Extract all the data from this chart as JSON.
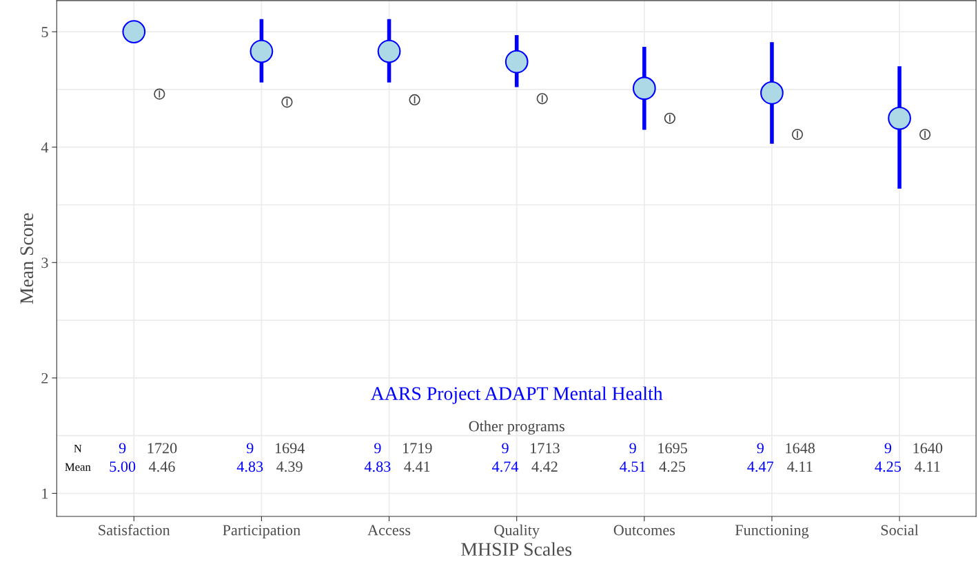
{
  "chart_data": {
    "type": "scatter",
    "xlabel": "MHSIP Scales",
    "ylabel": "Mean Score",
    "categories": [
      "Satisfaction",
      "Participation",
      "Access",
      "Quality",
      "Outcomes",
      "Functioning",
      "Social"
    ],
    "series": [
      {
        "name": "AARS Project ADAPT Mental Health",
        "color": "#0000ff",
        "values": [
          5.0,
          4.83,
          4.83,
          4.74,
          4.51,
          4.47,
          4.25
        ],
        "errors": [
          null,
          [
            4.56,
            5.11
          ],
          [
            4.56,
            5.11
          ],
          [
            4.52,
            4.97
          ],
          [
            4.15,
            4.87
          ],
          [
            4.03,
            4.91
          ],
          [
            3.64,
            4.7
          ]
        ]
      },
      {
        "name": "Other programs",
        "color": "#444444",
        "values": [
          4.46,
          4.39,
          4.41,
          4.42,
          4.25,
          4.11,
          4.11
        ],
        "errors": [
          0.03,
          0.03,
          0.03,
          0.03,
          0.03,
          0.03,
          0.03
        ]
      }
    ],
    "annotations": [
      "N",
      "Mean",
      "9",
      "1720",
      "5.00",
      "4.46",
      "9",
      "1694",
      "4.83",
      "4.39",
      "9",
      "1719",
      "4.83",
      "4.41",
      "9",
      "1713",
      "4.74",
      "4.42",
      "9",
      "1695",
      "4.51",
      "4.25",
      "9",
      "1648",
      "4.47",
      "4.11",
      "9",
      "1640",
      "4.25",
      "4.11"
    ],
    "ylim": [
      0.8,
      5.27
    ],
    "yticks": [
      1,
      2,
      3,
      4,
      5
    ],
    "grid": true,
    "marker": "circle"
  }
}
